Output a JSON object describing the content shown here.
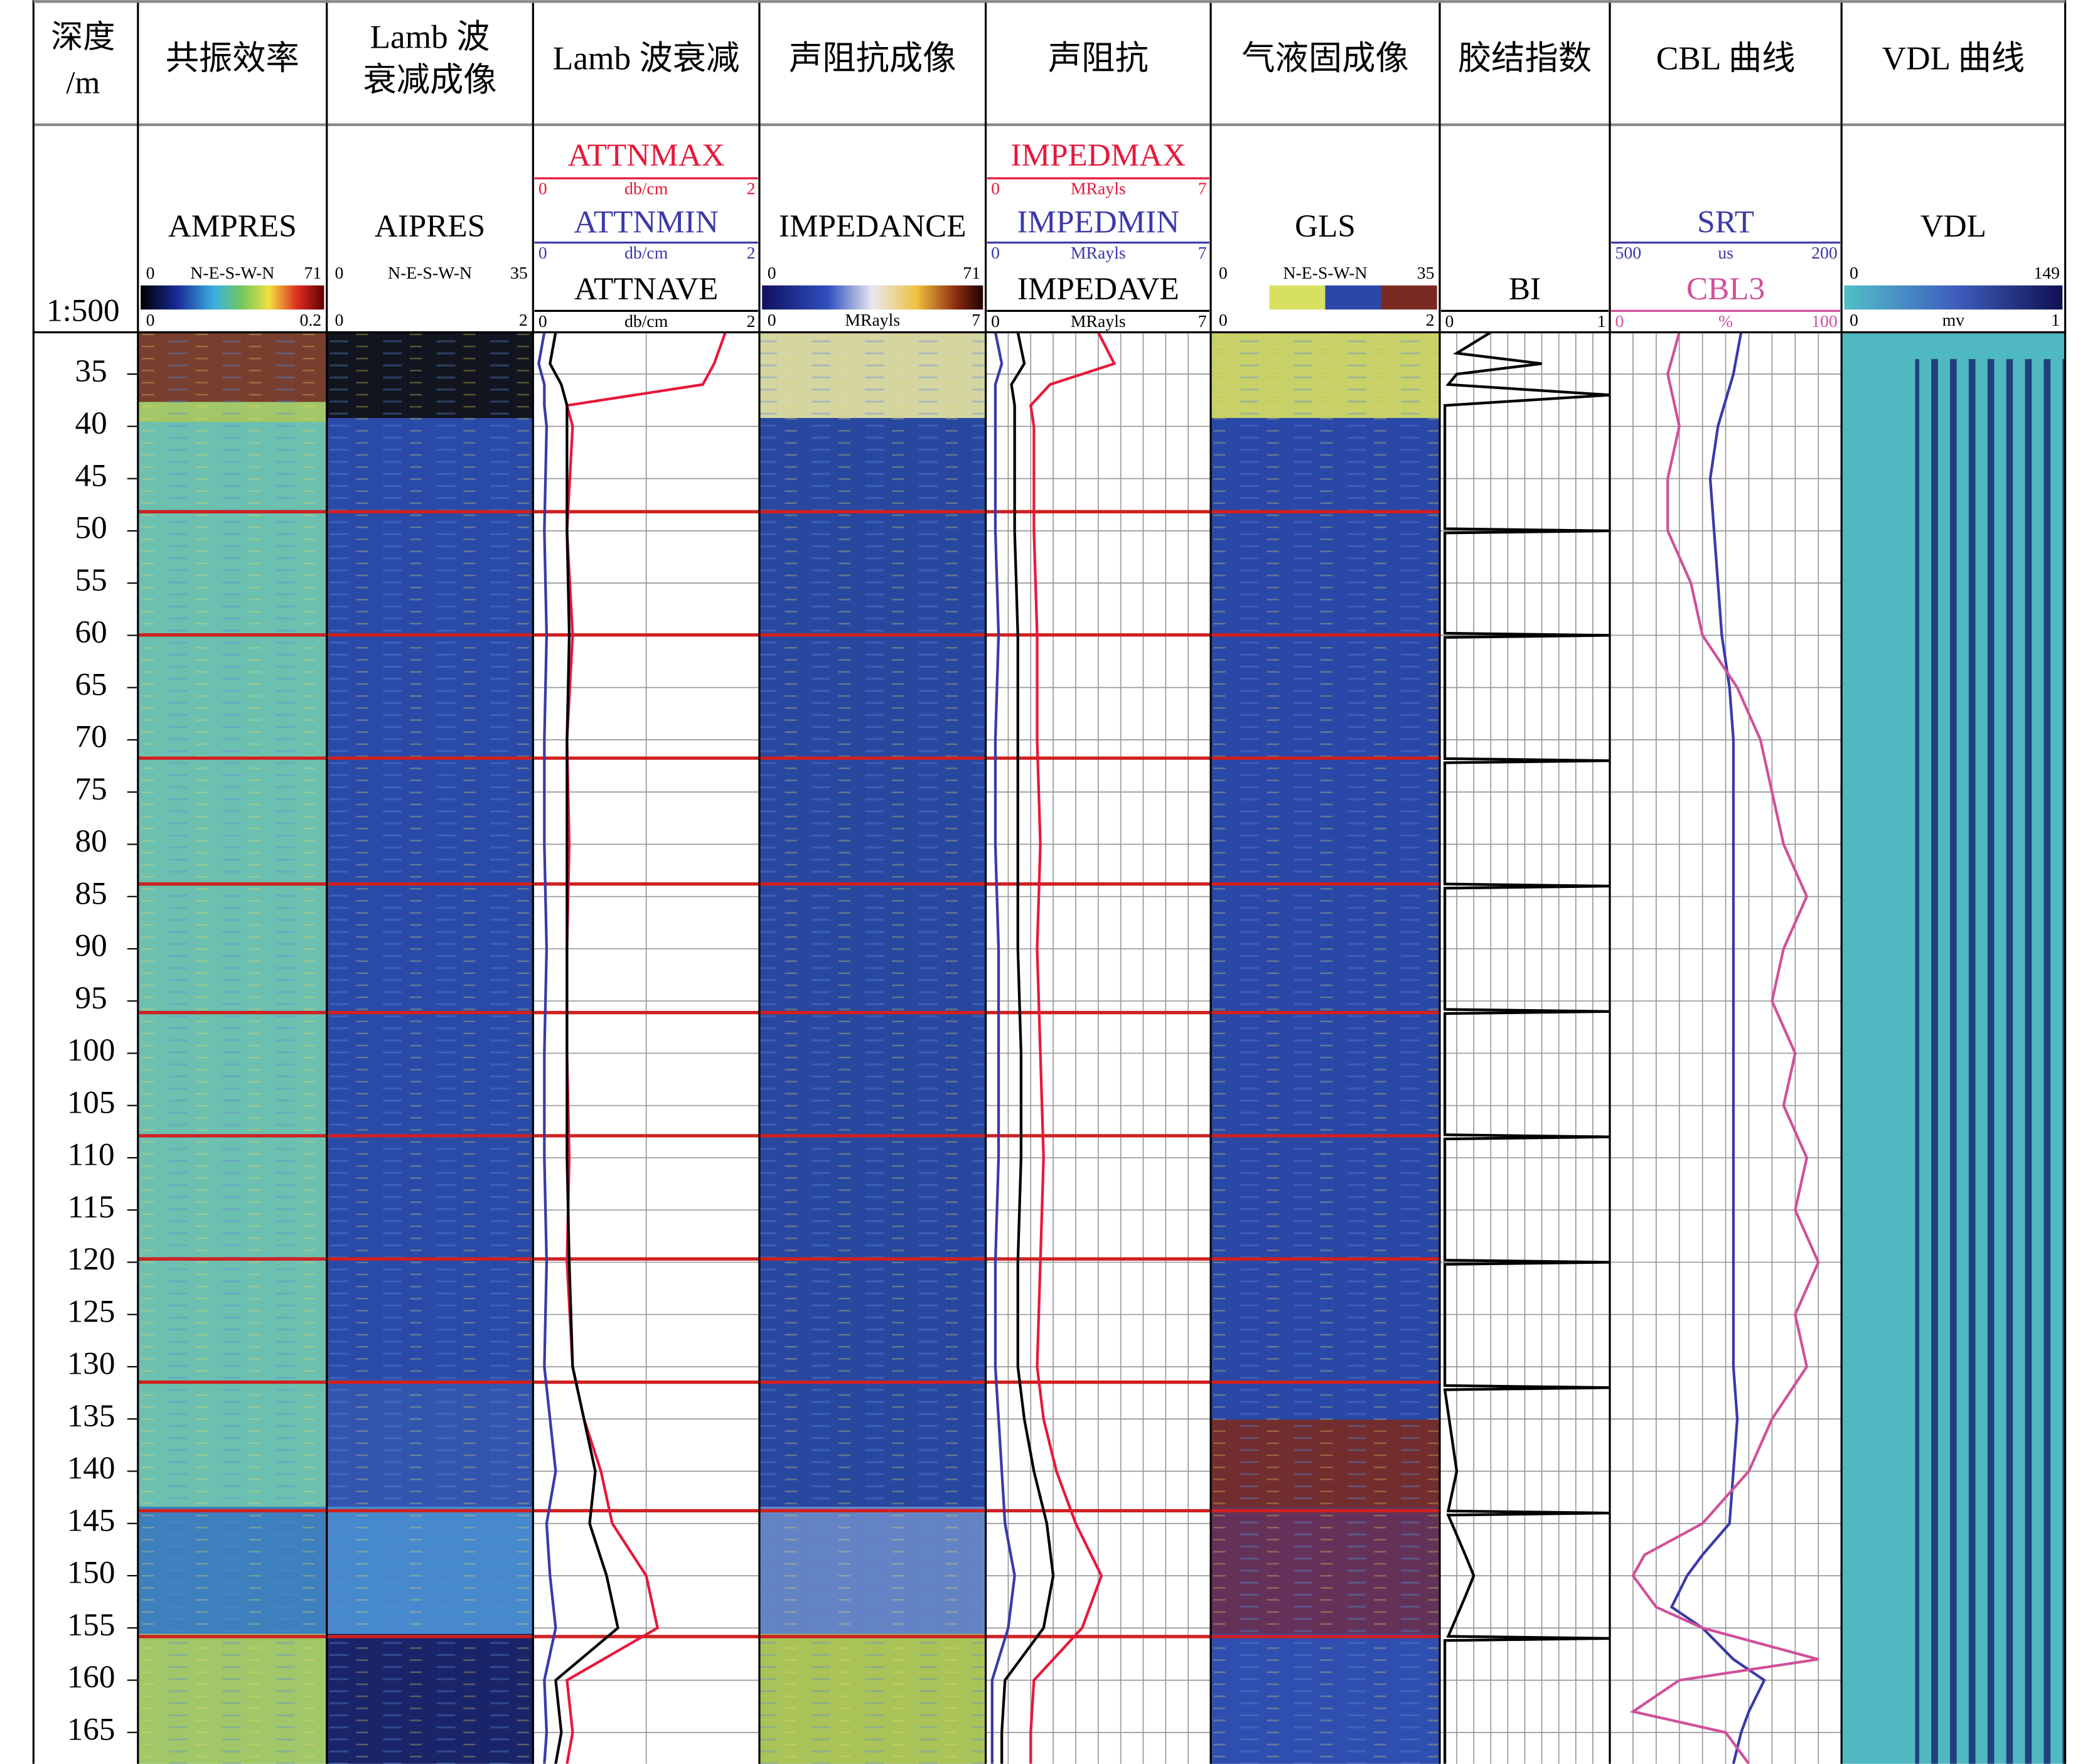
{
  "chart_data": {
    "type": "well_log",
    "depth_title": "深度",
    "depth_unit": "/m",
    "scale": "1:500",
    "ylim": [
      31,
      168
    ],
    "yticks": [
      35,
      40,
      45,
      50,
      55,
      60,
      65,
      70,
      75,
      80,
      85,
      90,
      95,
      100,
      105,
      110,
      115,
      120,
      125,
      130,
      135,
      140,
      145,
      150,
      155,
      160,
      165
    ],
    "tracks": [
      {
        "title": [
          "共振效率"
        ],
        "kind": "image",
        "mnemonic": "AMPRES",
        "azimuth": "N-E-S-W-N",
        "range": [
          0,
          71
        ],
        "colorbar": [
          0,
          0.2
        ]
      },
      {
        "title": [
          "Lamb 波",
          "衰减成像"
        ],
        "kind": "image",
        "mnemonic": "AIPRES",
        "azimuth": "N-E-S-W-N",
        "range": [
          0,
          35
        ],
        "colorbar": [
          0,
          2
        ]
      },
      {
        "title": [
          "Lamb 波衰减"
        ],
        "kind": "curves",
        "depth": [
          31,
          34,
          36,
          38,
          40,
          50,
          60,
          70,
          80,
          90,
          100,
          110,
          120,
          130,
          135,
          140,
          145,
          150,
          155,
          160,
          165,
          168
        ],
        "series": [
          {
            "name": "ATTNMAX",
            "color": "#e8183a",
            "unit": "db/cm",
            "xlim": [
              0,
              2
            ],
            "values": [
              1.7,
              1.6,
              1.5,
              0.3,
              0.35,
              0.3,
              0.35,
              0.3,
              0.32,
              0.3,
              0.3,
              0.32,
              0.3,
              0.35,
              0.45,
              0.6,
              0.7,
              1.0,
              1.1,
              0.3,
              0.35,
              0.3
            ]
          },
          {
            "name": "ATTNMIN",
            "color": "#3a3aa8",
            "unit": "db/cm",
            "xlim": [
              0,
              2
            ],
            "values": [
              0.1,
              0.05,
              0.1,
              0.1,
              0.12,
              0.1,
              0.12,
              0.1,
              0.1,
              0.12,
              0.1,
              0.1,
              0.12,
              0.1,
              0.15,
              0.2,
              0.12,
              0.15,
              0.2,
              0.1,
              0.12,
              0.1
            ]
          },
          {
            "name": "ATTNAVE",
            "color": "#000000",
            "unit": "db/cm",
            "xlim": [
              0,
              2
            ],
            "values": [
              0.2,
              0.15,
              0.25,
              0.3,
              0.3,
              0.3,
              0.32,
              0.3,
              0.3,
              0.3,
              0.3,
              0.3,
              0.32,
              0.35,
              0.45,
              0.55,
              0.5,
              0.65,
              0.75,
              0.2,
              0.25,
              0.2
            ]
          }
        ]
      },
      {
        "title": [
          "声阻抗成像"
        ],
        "kind": "image",
        "mnemonic": "IMPEDANCE",
        "range": [
          0,
          71
        ],
        "colorbar": [
          0,
          7
        ],
        "colorbar_unit": "MRayls"
      },
      {
        "title": [
          "声阻抗"
        ],
        "kind": "curves",
        "depth": [
          31,
          34,
          36,
          38,
          40,
          50,
          60,
          70,
          80,
          90,
          100,
          110,
          120,
          130,
          135,
          140,
          145,
          150,
          155,
          160,
          165,
          168
        ],
        "series": [
          {
            "name": "IMPEDMAX",
            "color": "#e8183a",
            "unit": "MRayls",
            "xlim": [
              0,
              7
            ],
            "values": [
              3.5,
              4.0,
              2.0,
              1.4,
              1.5,
              1.5,
              1.6,
              1.6,
              1.7,
              1.6,
              1.7,
              1.8,
              1.7,
              1.6,
              1.8,
              2.2,
              2.8,
              3.6,
              3.0,
              1.5,
              1.4,
              1.4
            ]
          },
          {
            "name": "IMPEDMIN",
            "color": "#3a3aa8",
            "unit": "MRayls",
            "xlim": [
              0,
              7
            ],
            "values": [
              0.3,
              0.5,
              0.3,
              0.3,
              0.3,
              0.3,
              0.4,
              0.3,
              0.3,
              0.4,
              0.4,
              0.4,
              0.3,
              0.3,
              0.4,
              0.5,
              0.6,
              0.9,
              0.7,
              0.2,
              0.2,
              0.2
            ]
          },
          {
            "name": "IMPEDAVE",
            "color": "#000000",
            "unit": "MRayls",
            "xlim": [
              0,
              7
            ],
            "values": [
              1.0,
              1.2,
              0.8,
              0.9,
              0.9,
              0.9,
              1.0,
              1.0,
              1.0,
              1.0,
              1.1,
              1.1,
              1.0,
              1.0,
              1.2,
              1.5,
              1.9,
              2.1,
              1.8,
              0.6,
              0.5,
              0.5
            ]
          }
        ]
      },
      {
        "title": [
          "气液固成像"
        ],
        "kind": "image",
        "mnemonic": "GLS",
        "azimuth": "N-E-S-W-N",
        "range": [
          0,
          35
        ],
        "colorbar": [
          0,
          2
        ]
      },
      {
        "title": [
          "胶结指数"
        ],
        "kind": "curves",
        "depth": [
          31,
          33,
          34,
          35,
          36,
          37,
          38,
          40,
          49.8,
          50,
          50.2,
          59.8,
          60,
          60.2,
          71.8,
          72,
          72.2,
          83.8,
          84,
          84.2,
          95.8,
          96,
          96.2,
          107.8,
          108,
          108.2,
          119.8,
          120,
          120.2,
          131.8,
          132,
          132.2,
          140,
          143.8,
          144,
          144.2,
          148,
          150,
          152,
          155.8,
          156,
          156.2,
          160,
          168
        ],
        "series": [
          {
            "name": "BI",
            "color": "#000000",
            "xlim": [
              0,
              1
            ],
            "values": [
              0.3,
              0.1,
              0.6,
              0.1,
              0.05,
              1.0,
              0.03,
              0.03,
              0.03,
              1.0,
              0.03,
              0.03,
              1.0,
              0.03,
              0.03,
              1.0,
              0.03,
              0.03,
              1.0,
              0.03,
              0.03,
              1.0,
              0.03,
              0.03,
              1.0,
              0.03,
              0.03,
              1.0,
              0.03,
              0.03,
              1.0,
              0.03,
              0.1,
              0.05,
              1.0,
              0.05,
              0.15,
              0.2,
              0.15,
              0.05,
              1.0,
              0.03,
              0.03,
              0.03
            ]
          }
        ]
      },
      {
        "title": [
          "CBL 曲线"
        ],
        "kind": "curves",
        "depth": [
          31,
          35,
          40,
          45,
          50,
          55,
          60,
          65,
          70,
          75,
          80,
          85,
          90,
          95,
          100,
          105,
          110,
          115,
          120,
          125,
          130,
          135,
          140,
          145,
          148,
          150,
          153,
          155,
          158,
          160,
          163,
          165,
          168
        ],
        "series": [
          {
            "name": "SRT",
            "color": "#3a3aa8",
            "unit": "us",
            "xlim": [
              500,
              200
            ],
            "values": [
              330,
              340,
              360,
              370,
              365,
              360,
              355,
              345,
              340,
              340,
              340,
              340,
              340,
              340,
              340,
              340,
              340,
              340,
              340,
              340,
              340,
              335,
              340,
              345,
              380,
              400,
              420,
              380,
              340,
              300,
              320,
              330,
              340
            ]
          },
          {
            "name": "CBL3",
            "color": "#d0509a",
            "unit": "%",
            "xlim": [
              0,
              100
            ],
            "values": [
              30,
              25,
              30,
              25,
              25,
              35,
              40,
              55,
              65,
              70,
              75,
              85,
              75,
              70,
              80,
              75,
              85,
              80,
              90,
              80,
              85,
              70,
              60,
              40,
              15,
              10,
              20,
              40,
              90,
              30,
              10,
              50,
              60
            ]
          }
        ]
      },
      {
        "title": [
          "VDL 曲线"
        ],
        "kind": "image",
        "mnemonic": "VDL",
        "range": [
          0,
          149
        ],
        "colorbar": [
          0,
          1
        ],
        "colorbar_unit": "mv"
      }
    ]
  }
}
